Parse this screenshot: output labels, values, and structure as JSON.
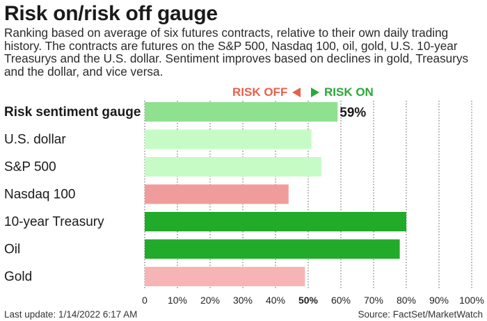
{
  "title": "Risk on/risk off gauge",
  "subtitle": "Ranking based on average of six futures contracts, relative to their own daily trading history. The contracts are futures on the S&P 500, Nasdaq 100, oil, gold, U.S. 10-year Treasurys and the U.S. dollar. Sentiment improves based on declines in gold, Treasurys and the dollar, and vice versa.",
  "legend": {
    "risk_off": "RISK OFF",
    "risk_on": "RISK ON"
  },
  "footer": {
    "last_update": "Last update: 1/14/2022 6:17 AM",
    "source": "Source: FactSet/MarketWatch"
  },
  "colors": {
    "risk_off_arrow": "#e8604c",
    "risk_on_arrow": "#2aa83a"
  },
  "chart_data": {
    "type": "bar",
    "orientation": "horizontal",
    "xlim": [
      0,
      100
    ],
    "grid": true,
    "ticks": [
      "0",
      "10%",
      "20%",
      "30%",
      "40%",
      "50%",
      "60%",
      "70%",
      "80%",
      "90%",
      "100%"
    ],
    "categories": [
      "Risk sentiment gauge",
      "U.S. dollar",
      "S&P 500",
      "Nasdaq 100",
      "10-year Treasury",
      "Oil",
      "Gold"
    ],
    "values": [
      59,
      51,
      54,
      44,
      80,
      78,
      49
    ],
    "bar_colors": [
      "#8fe08f",
      "#c6fbc6",
      "#c6fbc6",
      "#f09c9c",
      "#22aa2a",
      "#22aa2a",
      "#f7b4b4"
    ],
    "value_labels": [
      "59%",
      "",
      "",
      "",
      "",
      "",
      ""
    ]
  }
}
